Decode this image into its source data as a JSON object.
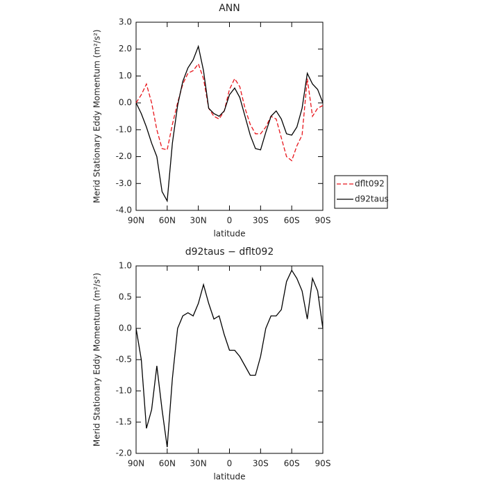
{
  "chart_data": [
    {
      "type": "line",
      "title": "ANN",
      "xlabel": "latitude",
      "ylabel": "Merid Stationary Eddy Momentum (m²/s²)",
      "x": [
        90,
        85,
        80,
        75,
        70,
        65,
        60,
        55,
        50,
        45,
        40,
        35,
        30,
        25,
        20,
        15,
        10,
        5,
        0,
        -5,
        -10,
        -15,
        -20,
        -25,
        -30,
        -35,
        -40,
        -45,
        -50,
        -55,
        -60,
        -65,
        -70,
        -75,
        -80,
        -85,
        -90
      ],
      "xlim": [
        90,
        -90
      ],
      "xticks": [
        {
          "value": 90,
          "label": "90N"
        },
        {
          "value": 60,
          "label": "60N"
        },
        {
          "value": 30,
          "label": "30N"
        },
        0,
        {
          "value": -30,
          "label": "30S"
        },
        {
          "value": -60,
          "label": "60S"
        },
        {
          "value": -90,
          "label": "90S"
        }
      ],
      "ylim": [
        -4,
        3
      ],
      "yticks": [
        {
          "value": 3,
          "label": "3.0"
        },
        {
          "value": 2,
          "label": "2.0"
        },
        {
          "value": 1,
          "label": "1.0"
        },
        {
          "value": 0,
          "label": "0.0"
        },
        {
          "value": -1,
          "label": "-1.0"
        },
        {
          "value": -2,
          "label": "-2.0"
        },
        {
          "value": -3,
          "label": "-3.0"
        },
        {
          "value": -4,
          "label": "-4.0"
        }
      ],
      "legend": "right",
      "series": [
        {
          "name": "dflt092",
          "color": "#e8141a",
          "style": "dashed",
          "values": [
            0.0,
            0.3,
            0.7,
            0.0,
            -1.0,
            -1.7,
            -1.75,
            -0.8,
            0.0,
            0.7,
            1.1,
            1.2,
            1.45,
            0.9,
            -0.2,
            -0.5,
            -0.6,
            -0.3,
            0.5,
            0.9,
            0.6,
            -0.2,
            -0.8,
            -1.15,
            -1.15,
            -0.9,
            -0.5,
            -0.6,
            -1.3,
            -2.0,
            -2.15,
            -1.6,
            -1.2,
            0.9,
            -0.5,
            -0.2,
            -0.1
          ]
        },
        {
          "name": "d92taus",
          "color": "#000000",
          "style": "solid",
          "values": [
            0.0,
            -0.4,
            -0.9,
            -1.5,
            -2.0,
            -3.3,
            -3.65,
            -1.5,
            -0.1,
            0.8,
            1.3,
            1.6,
            2.1,
            1.2,
            -0.2,
            -0.4,
            -0.5,
            -0.3,
            0.3,
            0.55,
            0.2,
            -0.5,
            -1.2,
            -1.7,
            -1.75,
            -1.1,
            -0.5,
            -0.3,
            -0.6,
            -1.15,
            -1.2,
            -0.9,
            -0.2,
            1.1,
            0.7,
            0.5,
            0.0
          ]
        }
      ]
    },
    {
      "type": "line",
      "title": "d92taus − dflt092",
      "xlabel": "latitude",
      "ylabel": "Merid Stationary Eddy Momentum (m²/s²)",
      "x": [
        90,
        85,
        80,
        75,
        70,
        65,
        60,
        55,
        50,
        45,
        40,
        35,
        30,
        25,
        20,
        15,
        10,
        5,
        0,
        -5,
        -10,
        -15,
        -20,
        -25,
        -30,
        -35,
        -40,
        -45,
        -50,
        -55,
        -60,
        -65,
        -70,
        -75,
        -80,
        -85,
        -90
      ],
      "xlim": [
        90,
        -90
      ],
      "xticks": [
        {
          "value": 90,
          "label": "90N"
        },
        {
          "value": 60,
          "label": "60N"
        },
        {
          "value": 30,
          "label": "30N"
        },
        0,
        {
          "value": -30,
          "label": "30S"
        },
        {
          "value": -60,
          "label": "60S"
        },
        {
          "value": -90,
          "label": "90S"
        }
      ],
      "ylim": [
        -2,
        1
      ],
      "yticks": [
        {
          "value": 1,
          "label": "1.0"
        },
        0.5,
        {
          "value": 0,
          "label": "0.0"
        },
        -0.5,
        {
          "value": -1,
          "label": "-1.0"
        },
        -1.5,
        {
          "value": -2,
          "label": "-2.0"
        }
      ],
      "color": "#000000",
      "values": [
        0.0,
        -0.5,
        -1.6,
        -1.3,
        -0.6,
        -1.3,
        -1.9,
        -0.8,
        0.0,
        0.2,
        0.25,
        0.2,
        0.4,
        0.7,
        0.4,
        0.15,
        0.2,
        -0.1,
        -0.35,
        -0.35,
        -0.45,
        -0.6,
        -0.75,
        -0.75,
        -0.45,
        0.0,
        0.2,
        0.2,
        0.3,
        0.75,
        0.93,
        0.8,
        0.6,
        0.15,
        0.8,
        0.6,
        0.0
      ]
    }
  ]
}
